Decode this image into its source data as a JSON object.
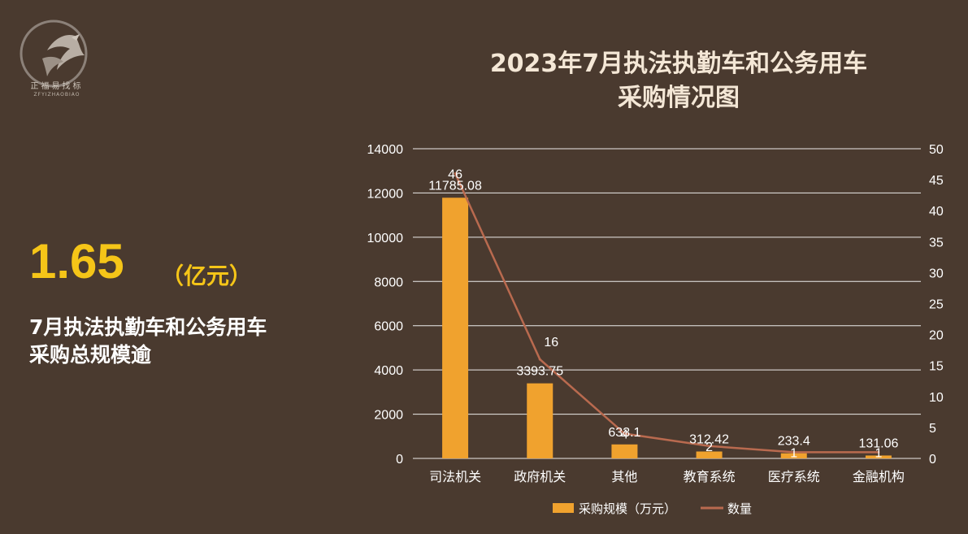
{
  "logo": {
    "name": "正福易找标",
    "subtitle": "ZFYIZHAOBIAO"
  },
  "summary": {
    "value": "1.65",
    "unit": "（亿元）",
    "line1": "7月执法执勤车和公务用车",
    "line2": "采购总规模逾"
  },
  "colors": {
    "bar": "#f0a22e",
    "line": "#b96a4f",
    "background": "#4a3a2f",
    "highlight": "#f5c518"
  },
  "chart_data": {
    "type": "bar",
    "title_line1": "2023年7月执法执勤车和公务用车",
    "title_line2": "采购情况图",
    "categories": [
      "司法机关",
      "政府机关",
      "其他",
      "教育系统",
      "医疗系统",
      "金融机构"
    ],
    "series": [
      {
        "name": "采购规模（万元）",
        "type": "bar",
        "axis": "left",
        "values": [
          11785.08,
          3393.75,
          633.1,
          312.42,
          233.4,
          131.06
        ],
        "labels": [
          "11785.08",
          "3393.75",
          "633.1",
          "312.42",
          "233.4",
          "131.06"
        ]
      },
      {
        "name": "数量",
        "type": "line",
        "axis": "right",
        "values": [
          46,
          16,
          4,
          2,
          1,
          1
        ],
        "labels": [
          "46",
          "16",
          "4",
          "2",
          "1",
          "1"
        ]
      }
    ],
    "y_left": {
      "min": 0,
      "max": 14000,
      "ticks": [
        "0",
        "2000",
        "4000",
        "6000",
        "8000",
        "10000",
        "12000",
        "14000"
      ]
    },
    "y_right": {
      "min": 0,
      "max": 50,
      "ticks": [
        "0",
        "5",
        "10",
        "15",
        "20",
        "25",
        "30",
        "35",
        "40",
        "45",
        "50"
      ]
    },
    "grid": true,
    "legend_position": "bottom"
  }
}
